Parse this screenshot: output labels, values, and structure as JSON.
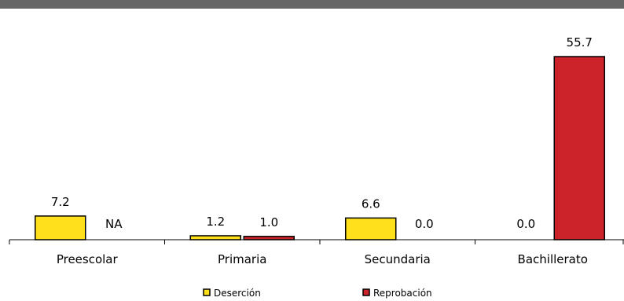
{
  "title": "",
  "chart_data": {
    "type": "bar",
    "categories": [
      "Preescolar",
      "Primaria",
      "Secundaria",
      "Bachillerato"
    ],
    "series": [
      {
        "name": "Deserción",
        "color": "#FFE01A",
        "values": [
          7.2,
          1.2,
          6.6,
          null
        ],
        "labels": [
          "7.2",
          "1.2",
          "6.6",
          "0.0"
        ]
      },
      {
        "name": "Reprobación",
        "color": "#CC2229",
        "values": [
          null,
          1.0,
          0.0,
          55.7
        ],
        "labels": [
          "NA",
          "1.0",
          "0.0",
          "55.7"
        ]
      }
    ],
    "ylim": [
      0,
      60
    ],
    "grid": false,
    "legend": "bottom-center"
  }
}
